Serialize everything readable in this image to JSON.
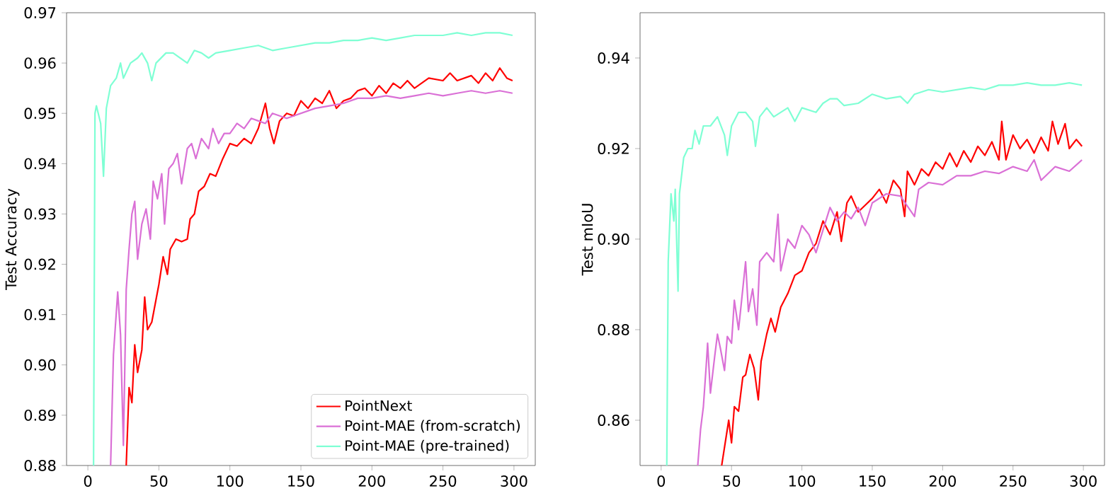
{
  "chart_data": [
    {
      "type": "line",
      "ylabel": "Test Accuracy",
      "xlim": [
        -15,
        315
      ],
      "ylim": [
        0.88,
        0.97
      ],
      "xticks": [
        0,
        50,
        100,
        150,
        200,
        250,
        300
      ],
      "yticks": [
        {
          "value": 0.88,
          "label": "0.88"
        },
        {
          "value": 0.89,
          "label": "0.89"
        },
        {
          "value": 0.9,
          "label": "0.90"
        },
        {
          "value": 0.91,
          "label": "0.91"
        },
        {
          "value": 0.92,
          "label": "0.92"
        },
        {
          "value": 0.93,
          "label": "0.93"
        },
        {
          "value": 0.94,
          "label": "0.94"
        },
        {
          "value": 0.95,
          "label": "0.95"
        },
        {
          "value": 0.96,
          "label": "0.96"
        },
        {
          "value": 0.97,
          "label": "0.97"
        }
      ],
      "legend": "bottom right",
      "line_style": "solid",
      "marker": "none",
      "series": [
        {
          "name": "PointNext",
          "color": "#ff0000",
          "x": [
            27,
            29,
            31,
            33,
            35,
            38,
            40,
            42,
            45,
            48,
            50,
            53,
            56,
            58,
            62,
            66,
            70,
            72,
            75,
            78,
            82,
            86,
            90,
            95,
            100,
            105,
            110,
            115,
            120,
            125,
            128,
            131,
            135,
            140,
            145,
            150,
            155,
            160,
            165,
            170,
            175,
            180,
            185,
            190,
            195,
            200,
            205,
            210,
            215,
            220,
            225,
            230,
            240,
            250,
            255,
            260,
            270,
            275,
            280,
            285,
            290,
            295,
            299
          ],
          "values": [
            0.88,
            0.8955,
            0.8925,
            0.904,
            0.8985,
            0.903,
            0.9135,
            0.907,
            0.9085,
            0.913,
            0.916,
            0.9215,
            0.918,
            0.923,
            0.925,
            0.9245,
            0.925,
            0.929,
            0.93,
            0.9345,
            0.9355,
            0.938,
            0.9375,
            0.941,
            0.944,
            0.9435,
            0.945,
            0.944,
            0.947,
            0.952,
            0.947,
            0.944,
            0.9485,
            0.95,
            0.9495,
            0.9525,
            0.951,
            0.953,
            0.952,
            0.9545,
            0.951,
            0.9525,
            0.953,
            0.9545,
            0.955,
            0.9535,
            0.9555,
            0.954,
            0.956,
            0.955,
            0.9565,
            0.955,
            0.957,
            0.9565,
            0.958,
            0.9565,
            0.9575,
            0.956,
            0.958,
            0.9565,
            0.959,
            0.957,
            0.9565
          ]
        },
        {
          "name": "Point-MAE (from-scratch)",
          "color": "#da70d6",
          "x": [
            16,
            18,
            21,
            23,
            25,
            27,
            29,
            31,
            33,
            35,
            38,
            41,
            44,
            46,
            49,
            52,
            54,
            57,
            60,
            63,
            66,
            70,
            73,
            76,
            80,
            85,
            88,
            92,
            96,
            100,
            105,
            110,
            115,
            120,
            125,
            130,
            140,
            150,
            160,
            170,
            180,
            190,
            200,
            210,
            220,
            230,
            240,
            250,
            260,
            270,
            280,
            290,
            299
          ],
          "values": [
            0.88,
            0.902,
            0.9145,
            0.906,
            0.884,
            0.915,
            0.923,
            0.93,
            0.9325,
            0.921,
            0.928,
            0.931,
            0.925,
            0.9365,
            0.933,
            0.938,
            0.928,
            0.939,
            0.94,
            0.942,
            0.936,
            0.943,
            0.944,
            0.941,
            0.945,
            0.943,
            0.947,
            0.944,
            0.946,
            0.946,
            0.948,
            0.947,
            0.949,
            0.9485,
            0.948,
            0.95,
            0.949,
            0.95,
            0.951,
            0.9515,
            0.952,
            0.953,
            0.953,
            0.9535,
            0.953,
            0.9535,
            0.954,
            0.9535,
            0.954,
            0.9545,
            0.954,
            0.9545,
            0.954
          ]
        },
        {
          "name": "Point-MAE (pre-trained)",
          "color": "#7fffd4",
          "x": [
            4,
            5,
            6,
            9,
            11,
            13,
            16,
            20,
            23,
            25,
            30,
            35,
            38,
            42,
            45,
            48,
            55,
            60,
            65,
            70,
            75,
            80,
            85,
            90,
            100,
            110,
            120,
            130,
            140,
            150,
            160,
            170,
            180,
            190,
            200,
            210,
            220,
            230,
            240,
            250,
            260,
            270,
            280,
            290,
            299
          ],
          "values": [
            0.88,
            0.95,
            0.9515,
            0.948,
            0.9375,
            0.951,
            0.9555,
            0.957,
            0.96,
            0.957,
            0.96,
            0.961,
            0.962,
            0.96,
            0.9565,
            0.96,
            0.962,
            0.962,
            0.961,
            0.96,
            0.9625,
            0.962,
            0.961,
            0.962,
            0.9625,
            0.963,
            0.9635,
            0.9625,
            0.963,
            0.9635,
            0.964,
            0.964,
            0.9645,
            0.9645,
            0.965,
            0.9645,
            0.965,
            0.9655,
            0.9655,
            0.9655,
            0.966,
            0.9655,
            0.966,
            0.966,
            0.9655
          ]
        }
      ]
    },
    {
      "type": "line",
      "ylabel": "Test mIoU",
      "xlim": [
        -15,
        315
      ],
      "ylim": [
        0.85,
        0.95
      ],
      "xticks": [
        0,
        50,
        100,
        150,
        200,
        250,
        300
      ],
      "yticks": [
        {
          "value": 0.86,
          "label": "0.86"
        },
        {
          "value": 0.88,
          "label": "0.88"
        },
        {
          "value": 0.9,
          "label": "0.90"
        },
        {
          "value": 0.92,
          "label": "0.92"
        },
        {
          "value": 0.94,
          "label": "0.94"
        }
      ],
      "line_style": "solid",
      "marker": "none",
      "series": [
        {
          "color": "#ff0000",
          "x": [
            43,
            48,
            50,
            52,
            55,
            58,
            60,
            63,
            66,
            69,
            71,
            75,
            78,
            81,
            85,
            90,
            95,
            100,
            105,
            110,
            115,
            120,
            125,
            128,
            132,
            135,
            140,
            145,
            150,
            155,
            160,
            165,
            170,
            173,
            175,
            180,
            185,
            190,
            195,
            200,
            205,
            210,
            215,
            220,
            225,
            230,
            235,
            240,
            242,
            245,
            250,
            255,
            260,
            265,
            270,
            275,
            278,
            282,
            287,
            290,
            295,
            299
          ],
          "values": [
            0.85,
            0.86,
            0.855,
            0.863,
            0.862,
            0.8695,
            0.87,
            0.8745,
            0.8715,
            0.8645,
            0.873,
            0.879,
            0.8825,
            0.8795,
            0.885,
            0.888,
            0.892,
            0.893,
            0.897,
            0.899,
            0.904,
            0.901,
            0.906,
            0.8995,
            0.908,
            0.9095,
            0.906,
            0.9075,
            0.909,
            0.911,
            0.908,
            0.913,
            0.911,
            0.905,
            0.915,
            0.912,
            0.9155,
            0.914,
            0.917,
            0.9155,
            0.919,
            0.916,
            0.9195,
            0.917,
            0.9205,
            0.9185,
            0.9215,
            0.9175,
            0.926,
            0.9175,
            0.923,
            0.92,
            0.922,
            0.919,
            0.9225,
            0.9195,
            0.926,
            0.921,
            0.9255,
            0.92,
            0.922,
            0.9205
          ]
        },
        {
          "color": "#da70d6",
          "x": [
            26,
            28,
            30,
            32,
            33,
            35,
            38,
            40,
            42,
            45,
            47,
            50,
            52,
            55,
            58,
            60,
            62,
            65,
            68,
            70,
            75,
            80,
            83,
            85,
            90,
            95,
            100,
            105,
            110,
            115,
            120,
            125,
            130,
            135,
            140,
            145,
            150,
            160,
            170,
            180,
            183,
            190,
            200,
            210,
            220,
            230,
            240,
            250,
            260,
            265,
            270,
            280,
            290,
            299
          ],
          "values": [
            0.85,
            0.858,
            0.863,
            0.872,
            0.877,
            0.866,
            0.874,
            0.879,
            0.876,
            0.871,
            0.8785,
            0.877,
            0.8865,
            0.88,
            0.889,
            0.895,
            0.884,
            0.889,
            0.881,
            0.895,
            0.897,
            0.895,
            0.9055,
            0.893,
            0.9,
            0.898,
            0.903,
            0.901,
            0.897,
            0.902,
            0.907,
            0.904,
            0.906,
            0.9045,
            0.907,
            0.903,
            0.908,
            0.91,
            0.9095,
            0.905,
            0.911,
            0.9125,
            0.912,
            0.914,
            0.914,
            0.915,
            0.9145,
            0.916,
            0.915,
            0.9175,
            0.913,
            0.916,
            0.915,
            0.9175
          ]
        },
        {
          "color": "#7fffd4",
          "x": [
            4,
            5,
            7,
            9,
            10,
            12,
            13,
            16,
            19,
            22,
            24,
            27,
            30,
            35,
            40,
            45,
            47,
            50,
            55,
            60,
            65,
            67,
            70,
            75,
            80,
            90,
            95,
            100,
            110,
            115,
            120,
            125,
            130,
            140,
            150,
            160,
            170,
            175,
            180,
            190,
            200,
            210,
            220,
            230,
            240,
            250,
            260,
            270,
            280,
            290,
            299
          ],
          "values": [
            0.85,
            0.895,
            0.91,
            0.904,
            0.911,
            0.8885,
            0.91,
            0.918,
            0.92,
            0.92,
            0.924,
            0.921,
            0.925,
            0.925,
            0.927,
            0.923,
            0.9185,
            0.925,
            0.928,
            0.928,
            0.926,
            0.9205,
            0.927,
            0.929,
            0.927,
            0.929,
            0.926,
            0.929,
            0.928,
            0.93,
            0.931,
            0.931,
            0.9295,
            0.93,
            0.932,
            0.931,
            0.9315,
            0.93,
            0.932,
            0.933,
            0.9325,
            0.933,
            0.9335,
            0.933,
            0.934,
            0.934,
            0.9345,
            0.934,
            0.934,
            0.9345,
            0.934
          ]
        }
      ]
    }
  ]
}
